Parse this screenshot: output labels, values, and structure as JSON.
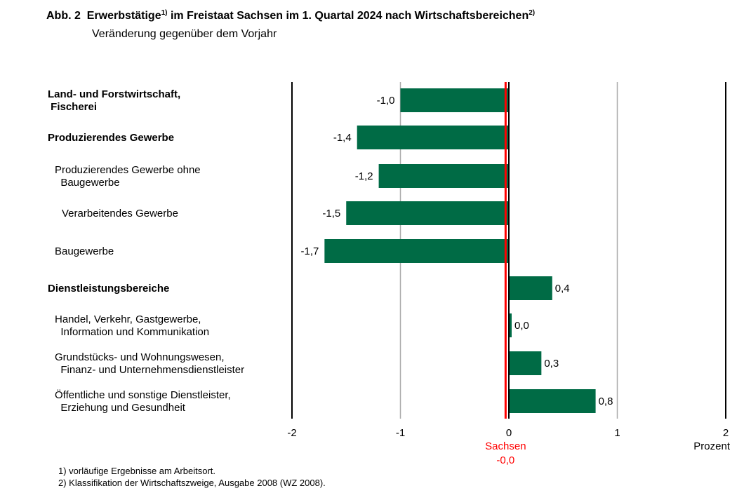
{
  "chart_data": {
    "type": "bar",
    "orientation": "horizontal",
    "title_prefix": "Abb. 2",
    "title": "Erwerbstätige",
    "title_sup1": "1)",
    "title_rest": " im Freistaat Sachsen im 1. Quartal 2024 nach Wirtschaftsbereichen",
    "title_sup2": "2)",
    "subtitle": "Veränderung gegenüber dem Vorjahr",
    "xlabel": "Prozent",
    "xlim": [
      -2,
      2
    ],
    "xticks": [
      -2,
      -1,
      0,
      1,
      2
    ],
    "xtick_labels": [
      "-2",
      "-1",
      "0",
      "1",
      "2"
    ],
    "categories": [
      {
        "lines": [
          "Land- und Forstwirtschaft,",
          " Fischerei"
        ],
        "bold": true,
        "indent": 0
      },
      {
        "lines": [
          "Produzierendes Gewerbe"
        ],
        "bold": true,
        "indent": 0
      },
      {
        "lines": [
          "Produzierendes Gewerbe ohne",
          "  Baugewerbe"
        ],
        "bold": false,
        "indent": 1
      },
      {
        "lines": [
          "Verarbeitendes Gewerbe"
        ],
        "bold": false,
        "indent": 2
      },
      {
        "lines": [
          "Baugewerbe"
        ],
        "bold": false,
        "indent": 1
      },
      {
        "lines": [
          "Dienstleistungsbereiche"
        ],
        "bold": true,
        "indent": 0
      },
      {
        "lines": [
          "Handel, Verkehr, Gastgewerbe,",
          "  Information und Kommunikation"
        ],
        "bold": false,
        "indent": 1
      },
      {
        "lines": [
          "Grundstücks- und Wohnungswesen,",
          "  Finanz- und Unternehmensdienstleister"
        ],
        "bold": false,
        "indent": 1
      },
      {
        "lines": [
          "Öffentliche und sonstige Dienstleister,",
          "  Erziehung und Gesundheit"
        ],
        "bold": false,
        "indent": 1
      }
    ],
    "values": [
      -1.0,
      -1.4,
      -1.2,
      -1.5,
      -1.7,
      0.4,
      0.0,
      0.3,
      0.8
    ],
    "value_labels": [
      "-1,0",
      "-1,4",
      "-1,2",
      "-1,5",
      "-1,7",
      "0,4",
      "0,0",
      "0,3",
      "0,8"
    ],
    "reference": {
      "name": "Sachsen",
      "value": -0.0,
      "label": "-0,0",
      "color": "#ff0000"
    },
    "bar_color": "#006b45",
    "grid": true,
    "footnotes": [
      "1) vorläufige Ergebnisse am Arbeitsort.",
      "2) Klassifikation der Wirtschaftszweige, Ausgabe 2008 (WZ 2008)."
    ]
  }
}
